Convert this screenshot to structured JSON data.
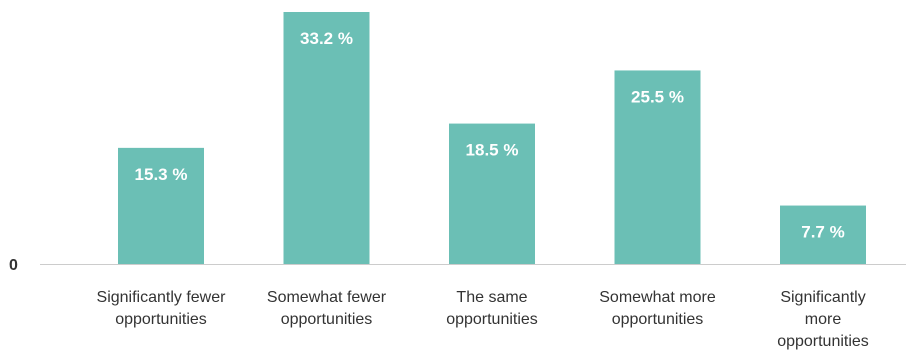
{
  "chart_data": {
    "type": "bar",
    "categories": [
      [
        "Significantly fewer",
        "opportunities"
      ],
      [
        "Somewhat fewer",
        "opportunities"
      ],
      [
        "The same",
        "opportunities"
      ],
      [
        "Somewhat more",
        "opportunities"
      ],
      [
        "Significantly",
        "more",
        "opportunities"
      ]
    ],
    "values": [
      15.3,
      33.2,
      18.5,
      25.5,
      7.7
    ],
    "value_labels": [
      "15.3 %",
      "33.2 %",
      "18.5 %",
      "25.5 %",
      "7.7 %"
    ],
    "ylim": [
      0,
      33.2
    ],
    "y_tick_labels": [
      "0"
    ],
    "grid": false,
    "legend": "none",
    "colors": {
      "bar": "#6bbfb5",
      "axis": "#cccccc",
      "text": "#333333",
      "value_text": "#ffffff"
    }
  }
}
